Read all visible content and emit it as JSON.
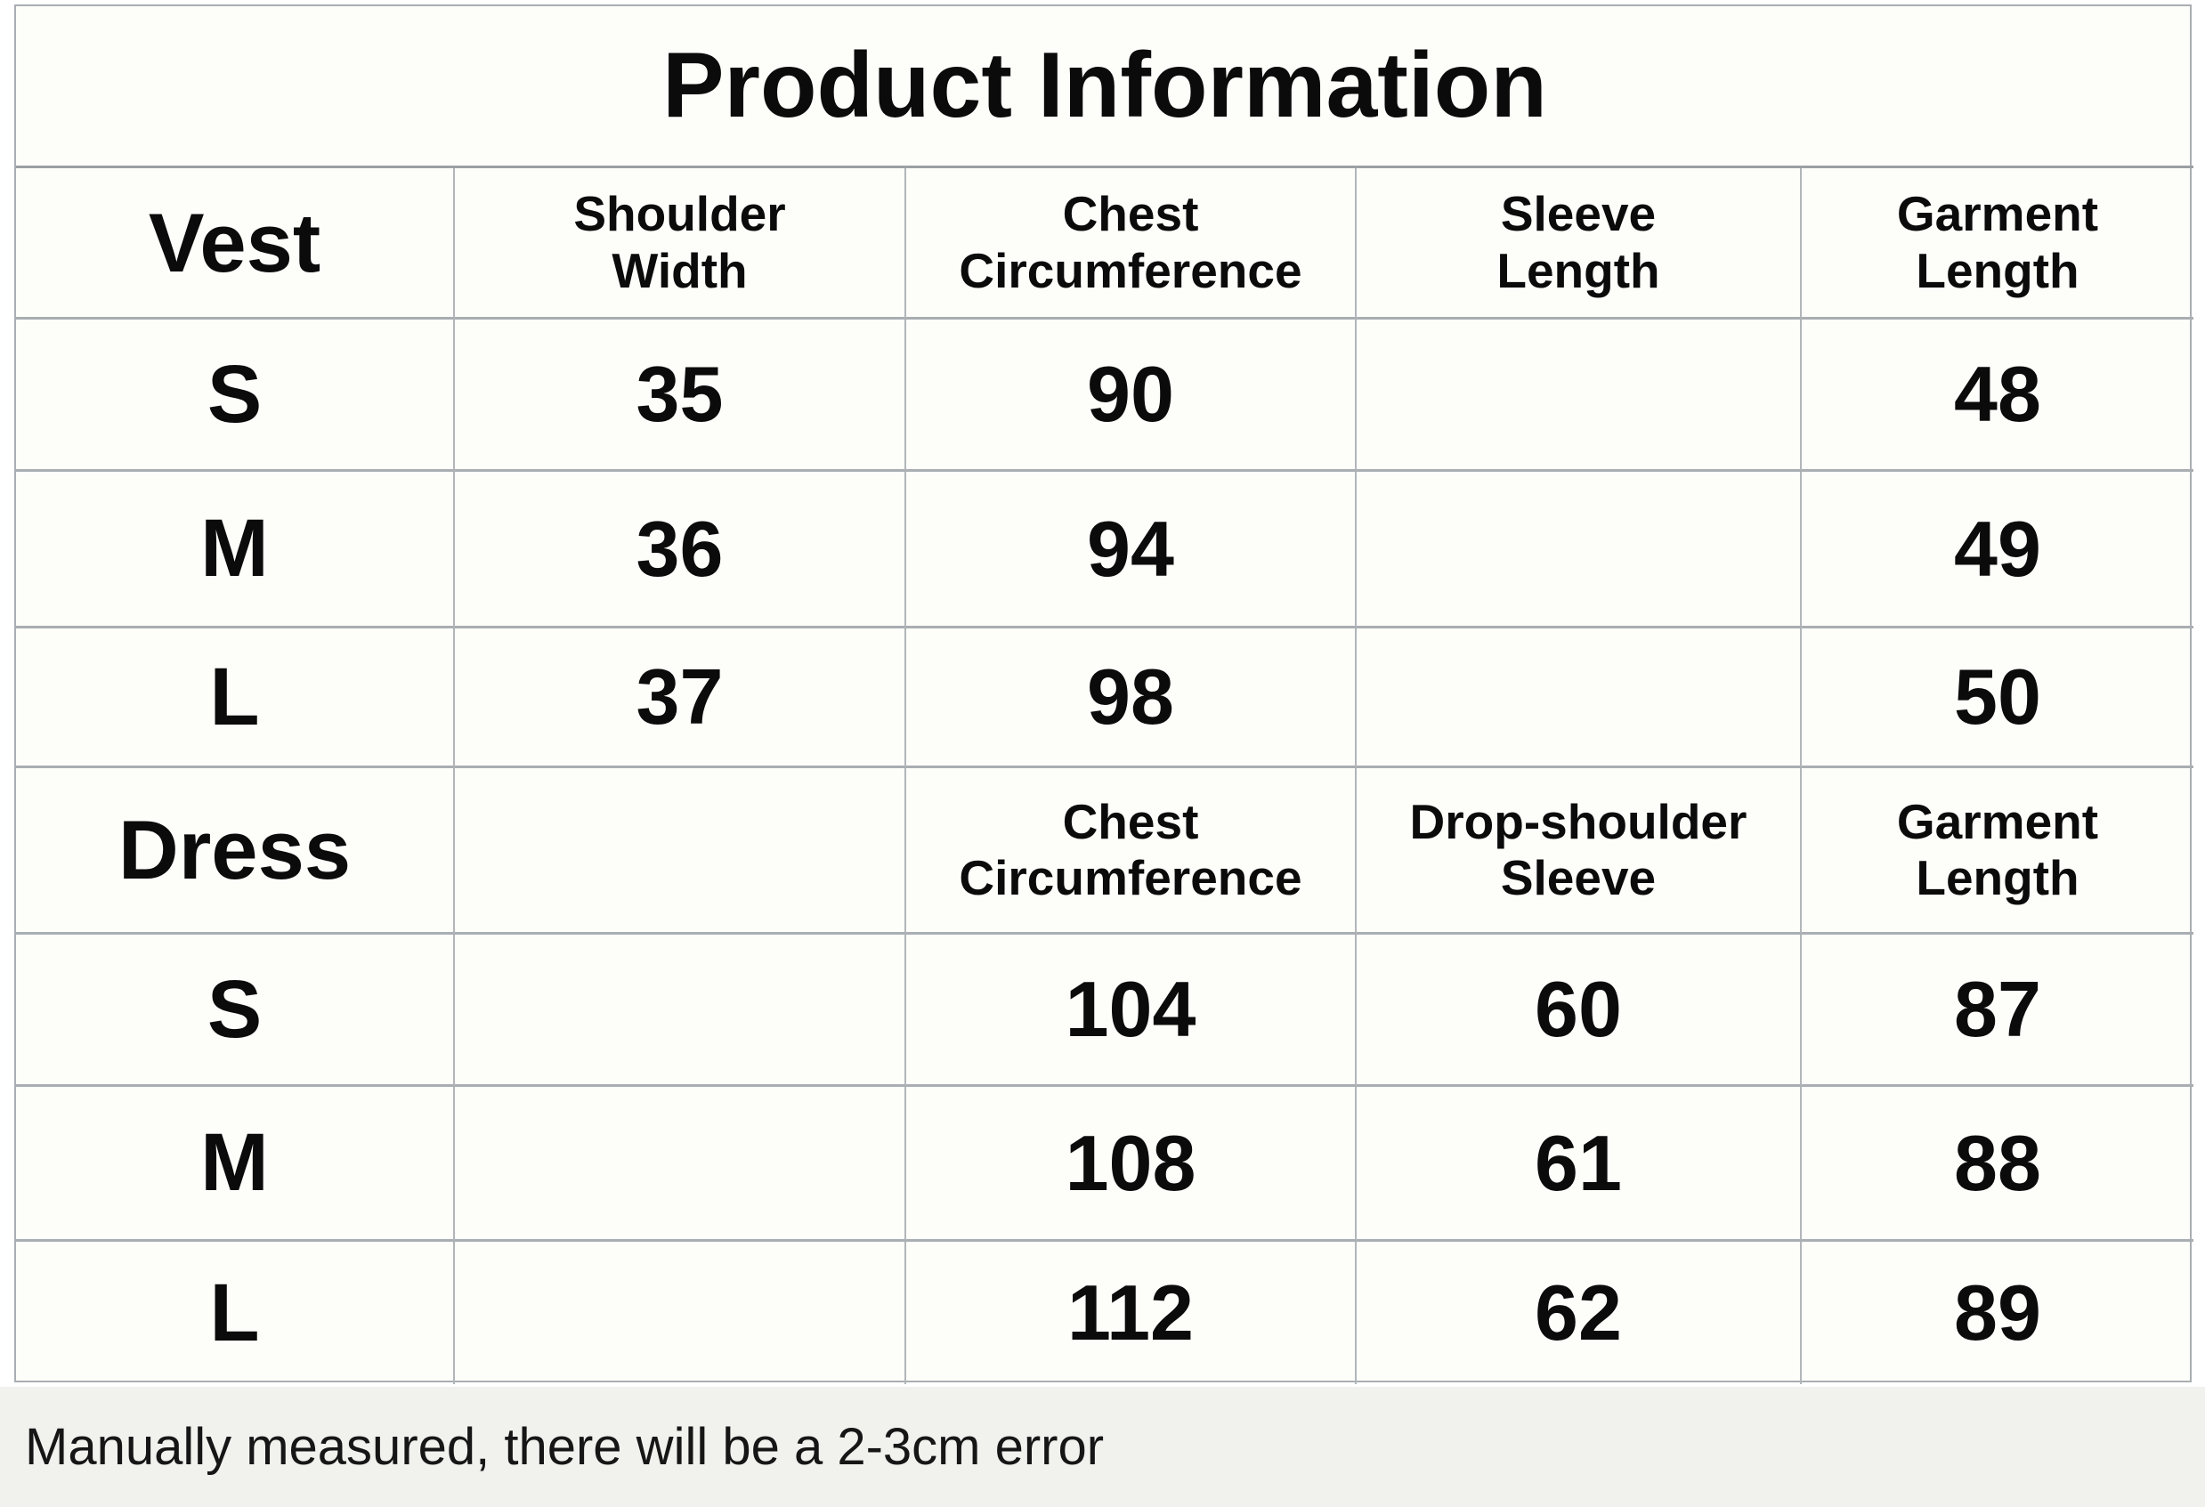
{
  "title": "Product Information",
  "note": "Manually measured, there will be a 2-3cm error",
  "colors": {
    "grid_border": "#a9aeb2",
    "cell_background": "#fdfdfa",
    "note_band_background": "#f1f1ee",
    "text": "#0b0b0b"
  },
  "sections": [
    {
      "label": "Vest",
      "headers": [
        "Shoulder\nWidth",
        "Chest\nCircumference",
        "Sleeve\nLength",
        "Garment\nLength"
      ],
      "rows": [
        {
          "size": "S",
          "values": [
            "35",
            "90",
            "",
            "48"
          ]
        },
        {
          "size": "M",
          "values": [
            "36",
            "94",
            "",
            "49"
          ]
        },
        {
          "size": "L",
          "values": [
            "37",
            "98",
            "",
            "50"
          ]
        }
      ]
    },
    {
      "label": "Dress",
      "headers": [
        "",
        "Chest\nCircumference",
        "Drop-shoulder\nSleeve",
        "Garment\nLength"
      ],
      "rows": [
        {
          "size": "S",
          "values": [
            "",
            "104",
            "60",
            "87"
          ]
        },
        {
          "size": "M",
          "values": [
            "",
            "108",
            "61",
            "88"
          ]
        },
        {
          "size": "L",
          "values": [
            "",
            "112",
            "62",
            "89"
          ]
        }
      ]
    }
  ]
}
